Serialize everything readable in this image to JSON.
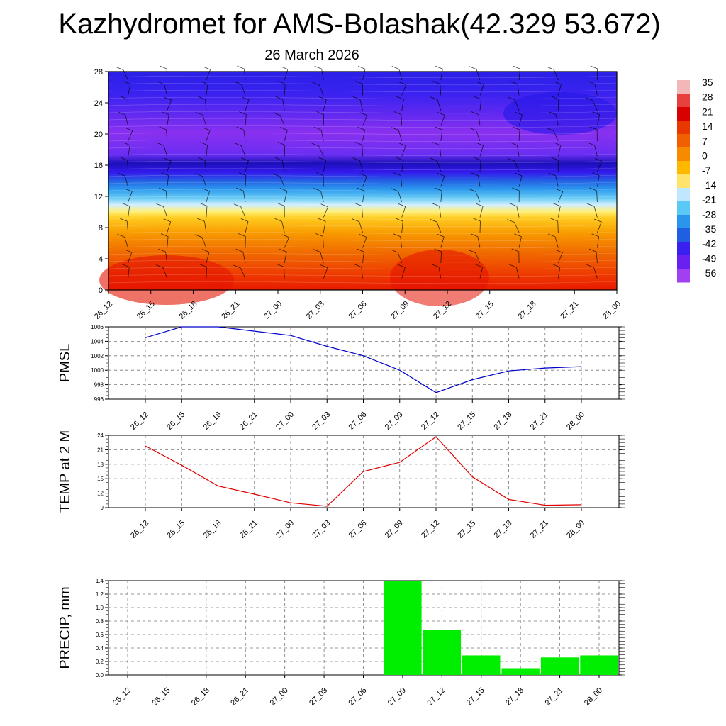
{
  "title": "Kazhydromet for AMS-Bolashak(42.329 53.672)",
  "subtitle": "26 March 2026",
  "time_labels": [
    "26_12",
    "26_15",
    "26_18",
    "26_21",
    "27_00",
    "27_03",
    "27_06",
    "27_09",
    "27_12",
    "27_15",
    "27_18",
    "27_21",
    "28_00"
  ],
  "colors": {
    "pmsl_line": "#0000cc",
    "temp_line": "#e00000",
    "precip_bar": "#00ee00"
  },
  "chart_data": [
    {
      "type": "heatmap",
      "y_ticks": [
        0,
        4,
        8,
        12,
        16,
        20,
        24,
        28
      ],
      "ylim": [
        0,
        28
      ],
      "note": "temperature cross-section with wind barbs",
      "colorbar_labels": [
        "35",
        "28",
        "21",
        "14",
        "7",
        "0",
        "-7",
        "-14",
        "-21",
        "-28",
        "-35",
        "-42",
        "-49",
        "-56"
      ],
      "colorbar_colors": [
        "#f2b8b8",
        "#e8403c",
        "#d80000",
        "#e83800",
        "#f06000",
        "#f88a00",
        "#ffb800",
        "#ffe36a",
        "#bfe7ff",
        "#5bc8f5",
        "#2b95ee",
        "#1f5fe0",
        "#3a20f0",
        "#6a20f0",
        "#a040f0"
      ]
    },
    {
      "type": "line",
      "ylabel": "PMSL",
      "ylim": [
        996,
        1006
      ],
      "y_ticks": [
        996,
        998,
        1000,
        1002,
        1004,
        1006
      ],
      "values": [
        1004.5,
        1006.0,
        1006.0,
        1005.4,
        1004.8,
        1003.3,
        1002.0,
        1000.0,
        996.9,
        998.7,
        999.9,
        1000.3,
        1000.5
      ]
    },
    {
      "type": "line",
      "ylabel": "TEMP at 2 M",
      "ylim": [
        9,
        24
      ],
      "y_ticks": [
        9,
        12,
        15,
        18,
        21,
        24
      ],
      "values": [
        21.8,
        17.8,
        13.5,
        11.8,
        10.0,
        9.3,
        16.5,
        18.4,
        23.7,
        15.4,
        10.7,
        9.5,
        9.6
      ]
    },
    {
      "type": "bar",
      "ylabel": "PRECIP, mm",
      "ylim": [
        0,
        1.4
      ],
      "y_ticks": [
        "0.0",
        "0.2",
        "0.4",
        "0.6",
        "0.8",
        "1.0",
        "1.2",
        "1.4"
      ],
      "values": [
        0,
        0,
        0,
        0,
        0,
        0,
        0,
        1.4,
        0.67,
        0.29,
        0.1,
        0.26,
        0.29
      ]
    }
  ]
}
